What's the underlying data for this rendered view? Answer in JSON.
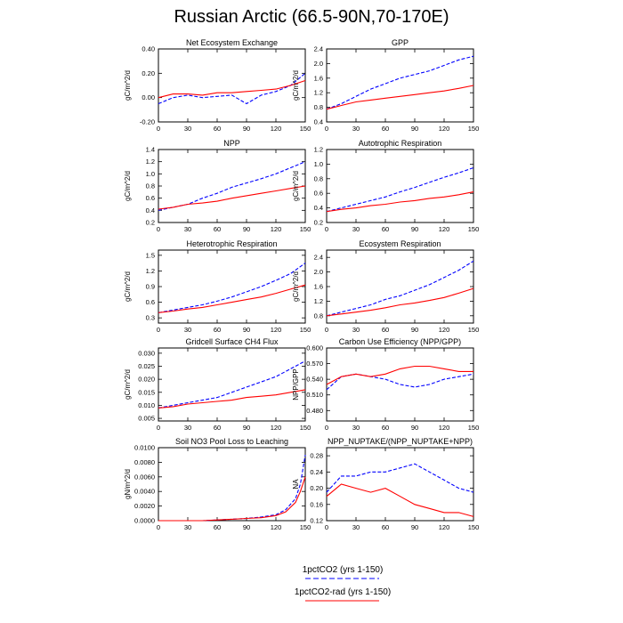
{
  "figure": {
    "title": "Russian Arctic (66.5-90N,70-170E)",
    "legend": [
      {
        "label": "1pctCO2 (yrs 1-150)",
        "color": "#0000ff",
        "dash": true
      },
      {
        "label": "1pctCO2-rad (yrs 1-150)",
        "color": "#ff0000",
        "dash": false
      }
    ]
  },
  "chart_data": [
    {
      "type": "line",
      "title": "Net Ecosystem Exchange",
      "ylabel": "gC/m^2/d",
      "xlim": [
        0,
        150
      ],
      "ylim": [
        -0.2,
        0.4
      ],
      "xticks": [
        0,
        30,
        60,
        90,
        120,
        150
      ],
      "yticks": [
        -0.2,
        0.0,
        0.2,
        0.4
      ],
      "ytick_labels": [
        "-0.20",
        "0.00",
        "0.20",
        "0.40"
      ],
      "x": [
        0,
        15,
        30,
        45,
        60,
        75,
        90,
        105,
        120,
        135,
        150
      ],
      "series": [
        {
          "name": "1pctCO2 (yrs 1-150)",
          "values": [
            -0.05,
            0.0,
            0.02,
            0.0,
            0.01,
            0.02,
            -0.05,
            0.02,
            0.05,
            0.1,
            0.2
          ]
        },
        {
          "name": "1pctCO2-rad (yrs 1-150)",
          "values": [
            0.0,
            0.03,
            0.03,
            0.02,
            0.04,
            0.04,
            0.05,
            0.06,
            0.07,
            0.1,
            0.14
          ]
        }
      ]
    },
    {
      "type": "line",
      "title": "GPP",
      "ylabel": "gC/m^2/d",
      "xlim": [
        0,
        150
      ],
      "ylim": [
        0.4,
        2.4
      ],
      "xticks": [
        0,
        30,
        60,
        90,
        120,
        150
      ],
      "yticks": [
        0.4,
        0.8,
        1.2,
        1.6,
        2.0,
        2.4
      ],
      "ytick_labels": [
        "0.4",
        "0.8",
        "1.2",
        "1.6",
        "2.0",
        "2.4"
      ],
      "x": [
        0,
        15,
        30,
        45,
        60,
        75,
        90,
        105,
        120,
        135,
        150
      ],
      "series": [
        {
          "name": "1pctCO2 (yrs 1-150)",
          "values": [
            0.75,
            0.9,
            1.1,
            1.3,
            1.45,
            1.6,
            1.7,
            1.8,
            1.95,
            2.1,
            2.2
          ]
        },
        {
          "name": "1pctCO2-rad (yrs 1-150)",
          "values": [
            0.75,
            0.85,
            0.95,
            1.0,
            1.05,
            1.1,
            1.15,
            1.2,
            1.25,
            1.32,
            1.4
          ]
        }
      ]
    },
    {
      "type": "line",
      "title": "NPP",
      "ylabel": "gC/m^2/d",
      "xlim": [
        0,
        150
      ],
      "ylim": [
        0.2,
        1.4
      ],
      "xticks": [
        0,
        30,
        60,
        90,
        120,
        150
      ],
      "yticks": [
        0.2,
        0.4,
        0.6,
        0.8,
        1.0,
        1.2,
        1.4
      ],
      "ytick_labels": [
        "0.2",
        "0.4",
        "0.6",
        "0.8",
        "1.0",
        "1.2",
        "1.4"
      ],
      "x": [
        0,
        15,
        30,
        45,
        60,
        75,
        90,
        105,
        120,
        135,
        150
      ],
      "series": [
        {
          "name": "1pctCO2 (yrs 1-150)",
          "values": [
            0.4,
            0.45,
            0.5,
            0.6,
            0.68,
            0.78,
            0.85,
            0.92,
            1.0,
            1.1,
            1.2
          ]
        },
        {
          "name": "1pctCO2-rad (yrs 1-150)",
          "values": [
            0.42,
            0.45,
            0.5,
            0.52,
            0.55,
            0.6,
            0.64,
            0.68,
            0.72,
            0.76,
            0.8
          ]
        }
      ]
    },
    {
      "type": "line",
      "title": "Autotrophic Respiration",
      "ylabel": "gC/m^2/d",
      "xlim": [
        0,
        150
      ],
      "ylim": [
        0.2,
        1.2
      ],
      "xticks": [
        0,
        30,
        60,
        90,
        120,
        150
      ],
      "yticks": [
        0.2,
        0.4,
        0.6,
        0.8,
        1.0,
        1.2
      ],
      "ytick_labels": [
        "0.2",
        "0.4",
        "0.6",
        "0.8",
        "1.0",
        "1.2"
      ],
      "x": [
        0,
        15,
        30,
        45,
        60,
        75,
        90,
        105,
        120,
        135,
        150
      ],
      "series": [
        {
          "name": "1pctCO2 (yrs 1-150)",
          "values": [
            0.35,
            0.4,
            0.45,
            0.5,
            0.55,
            0.62,
            0.68,
            0.75,
            0.82,
            0.88,
            0.95
          ]
        },
        {
          "name": "1pctCO2-rad (yrs 1-150)",
          "values": [
            0.35,
            0.38,
            0.4,
            0.43,
            0.45,
            0.48,
            0.5,
            0.53,
            0.55,
            0.58,
            0.62
          ]
        }
      ]
    },
    {
      "type": "line",
      "title": "Heterotrophic Respiration",
      "ylabel": "gC/m^2/d",
      "xlim": [
        0,
        150
      ],
      "ylim": [
        0.2,
        1.6
      ],
      "xticks": [
        0,
        30,
        60,
        90,
        120,
        150
      ],
      "yticks": [
        0.3,
        0.6,
        0.9,
        1.2,
        1.5
      ],
      "ytick_labels": [
        "0.3",
        "0.6",
        "0.9",
        "1.2",
        "1.5"
      ],
      "x": [
        0,
        15,
        30,
        45,
        60,
        75,
        90,
        105,
        120,
        135,
        150
      ],
      "series": [
        {
          "name": "1pctCO2 (yrs 1-150)",
          "values": [
            0.4,
            0.45,
            0.5,
            0.55,
            0.62,
            0.7,
            0.8,
            0.9,
            1.02,
            1.15,
            1.35
          ]
        },
        {
          "name": "1pctCO2-rad (yrs 1-150)",
          "values": [
            0.4,
            0.43,
            0.47,
            0.5,
            0.55,
            0.6,
            0.65,
            0.7,
            0.77,
            0.85,
            0.93
          ]
        }
      ]
    },
    {
      "type": "line",
      "title": "Ecosystem Respiration",
      "ylabel": "gC/m^2/d",
      "xlim": [
        0,
        150
      ],
      "ylim": [
        0.6,
        2.6
      ],
      "xticks": [
        0,
        30,
        60,
        90,
        120,
        150
      ],
      "yticks": [
        0.8,
        1.2,
        1.6,
        2.0,
        2.4
      ],
      "ytick_labels": [
        "0.8",
        "1.2",
        "1.6",
        "2.0",
        "2.4"
      ],
      "x": [
        0,
        15,
        30,
        45,
        60,
        75,
        90,
        105,
        120,
        135,
        150
      ],
      "series": [
        {
          "name": "1pctCO2 (yrs 1-150)",
          "values": [
            0.8,
            0.9,
            1.0,
            1.1,
            1.25,
            1.35,
            1.5,
            1.65,
            1.85,
            2.05,
            2.3
          ]
        },
        {
          "name": "1pctCO2-rad (yrs 1-150)",
          "values": [
            0.8,
            0.85,
            0.9,
            0.95,
            1.02,
            1.1,
            1.15,
            1.22,
            1.3,
            1.42,
            1.55
          ]
        }
      ]
    },
    {
      "type": "line",
      "title": "Gridcell Surface CH4 Flux",
      "ylabel": "gC/m^2/d",
      "xlim": [
        0,
        150
      ],
      "ylim": [
        0.004,
        0.032
      ],
      "xticks": [
        0,
        30,
        60,
        90,
        120,
        150
      ],
      "yticks": [
        0.005,
        0.01,
        0.015,
        0.02,
        0.025,
        0.03
      ],
      "ytick_labels": [
        "0.005",
        "0.010",
        "0.015",
        "0.020",
        "0.025",
        "0.030"
      ],
      "x": [
        0,
        15,
        30,
        45,
        60,
        75,
        90,
        105,
        120,
        135,
        150
      ],
      "series": [
        {
          "name": "1pctCO2 (yrs 1-150)",
          "values": [
            0.009,
            0.01,
            0.011,
            0.012,
            0.013,
            0.015,
            0.017,
            0.019,
            0.021,
            0.024,
            0.027
          ]
        },
        {
          "name": "1pctCO2-rad (yrs 1-150)",
          "values": [
            0.009,
            0.0095,
            0.0105,
            0.011,
            0.0115,
            0.012,
            0.013,
            0.0135,
            0.014,
            0.015,
            0.016
          ]
        }
      ]
    },
    {
      "type": "line",
      "title": "Carbon Use Efficiency (NPP/GPP)",
      "ylabel": "NPP/GPP",
      "xlim": [
        0,
        150
      ],
      "ylim": [
        0.46,
        0.6
      ],
      "xticks": [
        0,
        30,
        60,
        90,
        120,
        150
      ],
      "yticks": [
        0.48,
        0.51,
        0.54,
        0.57,
        0.6
      ],
      "ytick_labels": [
        "0.480",
        "0.510",
        "0.540",
        "0.570",
        "0.600"
      ],
      "x": [
        0,
        15,
        30,
        45,
        60,
        75,
        90,
        105,
        120,
        135,
        150
      ],
      "series": [
        {
          "name": "1pctCO2 (yrs 1-150)",
          "values": [
            0.52,
            0.545,
            0.55,
            0.545,
            0.54,
            0.53,
            0.525,
            0.53,
            0.54,
            0.545,
            0.55
          ]
        },
        {
          "name": "1pctCO2-rad (yrs 1-150)",
          "values": [
            0.53,
            0.545,
            0.55,
            0.545,
            0.55,
            0.56,
            0.565,
            0.565,
            0.56,
            0.555,
            0.555
          ]
        }
      ]
    },
    {
      "type": "line",
      "title": "Soil NO3 Pool Loss to Leaching",
      "ylabel": "gN/m^2/d",
      "xlim": [
        0,
        150
      ],
      "ylim": [
        0,
        0.01
      ],
      "xticks": [
        0,
        30,
        60,
        90,
        120,
        150
      ],
      "yticks": [
        0,
        0.002,
        0.004,
        0.006,
        0.008,
        0.01
      ],
      "ytick_labels": [
        "0.0000",
        "0.0020",
        "0.0040",
        "0.0060",
        "0.0080",
        "0.0100"
      ],
      "x": [
        0,
        15,
        30,
        45,
        60,
        75,
        90,
        105,
        120,
        130,
        140,
        145,
        150
      ],
      "series": [
        {
          "name": "1pctCO2 (yrs 1-150)",
          "values": [
            0.0,
            0.0,
            0.0,
            0.0,
            0.0001,
            0.0002,
            0.0003,
            0.0005,
            0.0008,
            0.0015,
            0.003,
            0.005,
            0.009
          ]
        },
        {
          "name": "1pctCO2-rad (yrs 1-150)",
          "values": [
            0.0,
            0.0,
            0.0,
            0.0,
            0.0001,
            0.0002,
            0.0003,
            0.0004,
            0.0007,
            0.0012,
            0.0025,
            0.004,
            0.006
          ]
        }
      ]
    },
    {
      "type": "line",
      "title": "NPP_NUPTAKE/(NPP_NUPTAKE+NPP)",
      "ylabel": "NA",
      "xlim": [
        0,
        150
      ],
      "ylim": [
        0.12,
        0.3
      ],
      "xticks": [
        0,
        30,
        60,
        90,
        120,
        150
      ],
      "yticks": [
        0.12,
        0.16,
        0.2,
        0.24,
        0.28
      ],
      "ytick_labels": [
        "0.12",
        "0.16",
        "0.20",
        "0.24",
        "0.28"
      ],
      "x": [
        0,
        15,
        30,
        45,
        60,
        75,
        90,
        105,
        120,
        135,
        150
      ],
      "series": [
        {
          "name": "1pctCO2 (yrs 1-150)",
          "values": [
            0.19,
            0.23,
            0.23,
            0.24,
            0.24,
            0.25,
            0.26,
            0.24,
            0.22,
            0.2,
            0.19
          ]
        },
        {
          "name": "1pctCO2-rad (yrs 1-150)",
          "values": [
            0.18,
            0.21,
            0.2,
            0.19,
            0.2,
            0.18,
            0.16,
            0.15,
            0.14,
            0.14,
            0.13
          ]
        }
      ]
    }
  ]
}
